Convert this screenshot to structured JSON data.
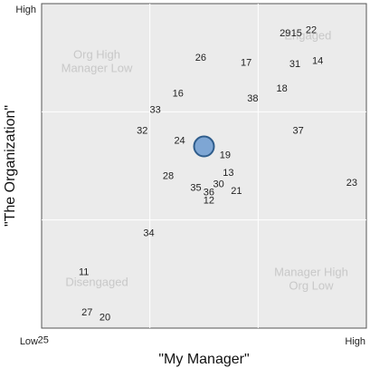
{
  "chart_data": {
    "type": "scatter",
    "title": "",
    "xlabel": "\"My Manager\"",
    "ylabel": "\"The Organization\"",
    "x_axis": {
      "low_label": "Low",
      "high_label": "High"
    },
    "y_axis": {
      "low_label": "Low",
      "high_label": "High"
    },
    "xlim": [
      0,
      100
    ],
    "ylim": [
      0,
      100
    ],
    "grid": true,
    "quadrant_labels": [
      {
        "id": "org-high-manager-low",
        "lines": [
          "Org High",
          "Manager Low"
        ],
        "x": 17,
        "y": 81
      },
      {
        "id": "engaged",
        "lines": [
          "Engaged"
        ],
        "x": 82,
        "y": 89
      },
      {
        "id": "disengaged",
        "lines": [
          "Disengaged"
        ],
        "x": 17,
        "y": 13
      },
      {
        "id": "manager-high-org-low",
        "lines": [
          "Manager High",
          "Org Low"
        ],
        "x": 83,
        "y": 14
      }
    ],
    "points": [
      {
        "label": "22",
        "x": 83.0,
        "y": 92.0
      },
      {
        "label": "29",
        "x": 75.0,
        "y": 91.0
      },
      {
        "label": "15",
        "x": 78.5,
        "y": 91.0
      },
      {
        "label": "26",
        "x": 49.0,
        "y": 83.5
      },
      {
        "label": "17",
        "x": 63.0,
        "y": 82.0
      },
      {
        "label": "31",
        "x": 78.0,
        "y": 81.5
      },
      {
        "label": "14",
        "x": 85.0,
        "y": 82.5
      },
      {
        "label": "18",
        "x": 74.0,
        "y": 74.0
      },
      {
        "label": "16",
        "x": 42.0,
        "y": 72.5
      },
      {
        "label": "38",
        "x": 65.0,
        "y": 71.0
      },
      {
        "label": "33",
        "x": 35.0,
        "y": 67.5
      },
      {
        "label": "32",
        "x": 31.0,
        "y": 61.0
      },
      {
        "label": "37",
        "x": 79.0,
        "y": 61.0
      },
      {
        "label": "24",
        "x": 42.5,
        "y": 58.0
      },
      {
        "label": "19",
        "x": 56.5,
        "y": 53.5
      },
      {
        "label": "13",
        "x": 57.5,
        "y": 48.0
      },
      {
        "label": "28",
        "x": 39.0,
        "y": 47.0
      },
      {
        "label": "30",
        "x": 54.5,
        "y": 44.5
      },
      {
        "label": "35",
        "x": 47.5,
        "y": 43.5
      },
      {
        "label": "36",
        "x": 51.5,
        "y": 42.0
      },
      {
        "label": "21",
        "x": 60.0,
        "y": 42.5
      },
      {
        "label": "12",
        "x": 51.5,
        "y": 39.5
      },
      {
        "label": "23",
        "x": 95.5,
        "y": 45.0
      },
      {
        "label": "34",
        "x": 33.0,
        "y": 29.5
      },
      {
        "label": "11",
        "x": 13.0,
        "y": 17.5
      },
      {
        "label": "27",
        "x": 14.0,
        "y": 5.0
      },
      {
        "label": "20",
        "x": 19.5,
        "y": 3.5
      },
      {
        "label": "25",
        "x": 0.5,
        "y": -3.5
      }
    ],
    "average_marker": {
      "x": 50.0,
      "y": 56.0
    }
  }
}
